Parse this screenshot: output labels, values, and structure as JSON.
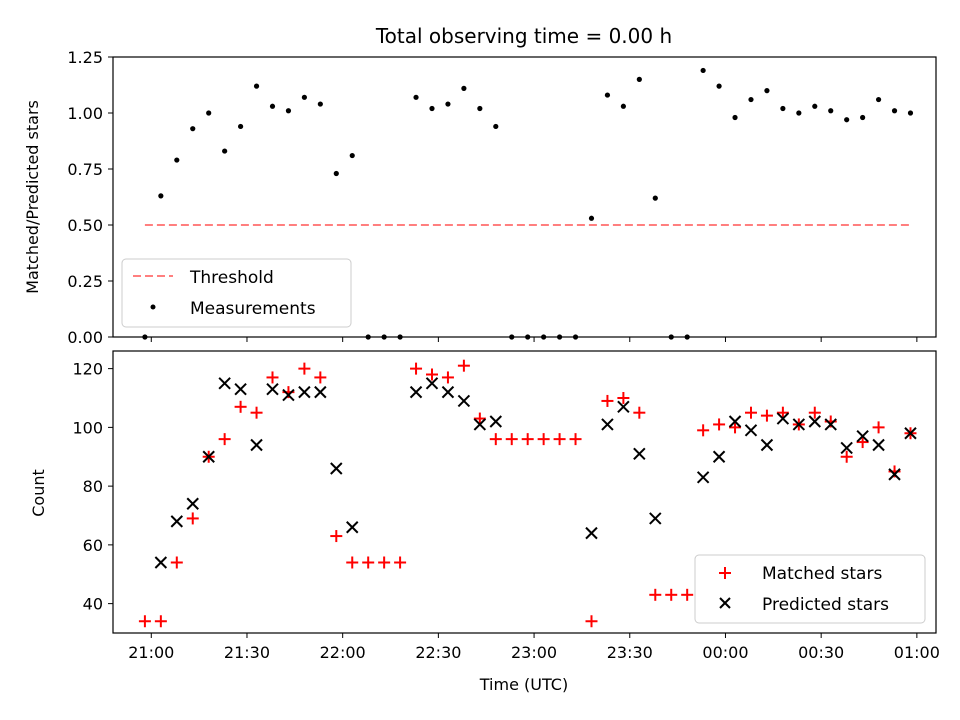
{
  "chart_data": [
    {
      "type": "scatter",
      "title": "Total observing time = 0.00 h",
      "xlabel": "",
      "ylabel": "Matched/Predicted stars",
      "ylim": [
        0,
        1.25
      ],
      "yticks": [
        "0.00",
        "0.25",
        "0.50",
        "0.75",
        "1.00",
        "1.25"
      ],
      "xlim": [
        "20:48",
        "01:06"
      ],
      "xticks_show_labels": false,
      "legend_position": "lower-left",
      "series": [
        {
          "name": "Threshold",
          "kind": "dashed-line",
          "color": "#ff7f7f",
          "x": [
            "20:58",
            "00:58"
          ],
          "values": [
            0.5,
            0.5
          ]
        },
        {
          "name": "Measurements",
          "kind": "dot",
          "color": "#000000",
          "x": [
            "20:58",
            "21:03",
            "21:08",
            "21:13",
            "21:18",
            "21:23",
            "21:28",
            "21:33",
            "21:38",
            "21:43",
            "21:48",
            "21:53",
            "21:58",
            "22:03",
            "22:08",
            "22:13",
            "22:18",
            "22:23",
            "22:28",
            "22:33",
            "22:38",
            "22:43",
            "22:48",
            "22:53",
            "22:58",
            "23:03",
            "23:08",
            "23:13",
            "23:18",
            "23:23",
            "23:28",
            "23:33",
            "23:38",
            "23:43",
            "23:48",
            "23:53",
            "23:58",
            "00:03",
            "00:08",
            "00:13",
            "00:18",
            "00:23",
            "00:28",
            "00:33",
            "00:38",
            "00:43",
            "00:48",
            "00:53",
            "00:58"
          ],
          "values": [
            0.0,
            0.63,
            0.79,
            0.93,
            1.0,
            0.83,
            0.94,
            1.12,
            1.03,
            1.01,
            1.07,
            1.04,
            0.73,
            0.81,
            0.0,
            0.0,
            0.0,
            1.07,
            1.02,
            1.04,
            1.11,
            1.02,
            0.94,
            0.0,
            0.0,
            0.0,
            0.0,
            0.0,
            0.53,
            1.08,
            1.03,
            1.15,
            0.62,
            0.0,
            0.0,
            1.19,
            1.12,
            0.98,
            1.06,
            1.1,
            1.02,
            1.0,
            1.03,
            1.01,
            0.97,
            0.98,
            1.06,
            1.01,
            1.0
          ]
        }
      ]
    },
    {
      "type": "scatter",
      "title": "",
      "xlabel": "Time (UTC)",
      "ylabel": "Count",
      "ylim": [
        30,
        126
      ],
      "yticks": [
        "40",
        "60",
        "80",
        "100",
        "120"
      ],
      "xlim": [
        "20:48",
        "01:06"
      ],
      "xticks": [
        "21:00",
        "21:30",
        "22:00",
        "22:30",
        "23:00",
        "23:30",
        "00:00",
        "00:30",
        "01:00"
      ],
      "legend_position": "lower-right",
      "series": [
        {
          "name": "Matched stars",
          "kind": "plus",
          "color": "#ff0000",
          "x": [
            "20:58",
            "21:03",
            "21:08",
            "21:13",
            "21:18",
            "21:23",
            "21:28",
            "21:33",
            "21:38",
            "21:43",
            "21:48",
            "21:53",
            "21:58",
            "22:03",
            "22:08",
            "22:13",
            "22:18",
            "22:23",
            "22:28",
            "22:33",
            "22:38",
            "22:43",
            "22:48",
            "22:53",
            "22:58",
            "23:03",
            "23:08",
            "23:13",
            "23:18",
            "23:23",
            "23:28",
            "23:33",
            "23:38",
            "23:43",
            "23:48",
            "23:53",
            "23:58",
            "00:03",
            "00:08",
            "00:13",
            "00:18",
            "00:23",
            "00:28",
            "00:33",
            "00:38",
            "00:43",
            "00:48",
            "00:53",
            "00:58"
          ],
          "values": [
            34,
            34,
            54,
            69,
            90,
            96,
            107,
            105,
            117,
            112,
            120,
            117,
            63,
            54,
            54,
            54,
            54,
            120,
            118,
            117,
            121,
            103,
            96,
            96,
            96,
            96,
            96,
            96,
            34,
            109,
            110,
            105,
            43,
            43,
            43,
            99,
            101,
            100,
            105,
            104,
            105,
            101,
            105,
            102,
            90,
            95,
            100,
            85,
            98
          ]
        },
        {
          "name": "Predicted stars",
          "kind": "cross",
          "color": "#000000",
          "x": [
            "21:03",
            "21:08",
            "21:13",
            "21:18",
            "21:23",
            "21:28",
            "21:33",
            "21:38",
            "21:43",
            "21:48",
            "21:53",
            "21:58",
            "22:03",
            "22:23",
            "22:28",
            "22:33",
            "22:38",
            "22:43",
            "22:48",
            "23:18",
            "23:23",
            "23:28",
            "23:33",
            "23:38",
            "23:53",
            "23:58",
            "00:03",
            "00:08",
            "00:13",
            "00:18",
            "00:23",
            "00:28",
            "00:33",
            "00:38",
            "00:43",
            "00:48",
            "00:53",
            "00:58"
          ],
          "values": [
            54,
            68,
            74,
            90,
            115,
            113,
            94,
            113,
            111,
            112,
            112,
            86,
            66,
            112,
            115,
            112,
            109,
            101,
            102,
            64,
            101,
            107,
            91,
            69,
            83,
            90,
            102,
            99,
            94,
            103,
            101,
            102,
            101,
            93,
            97,
            94,
            84,
            98
          ]
        }
      ]
    }
  ]
}
